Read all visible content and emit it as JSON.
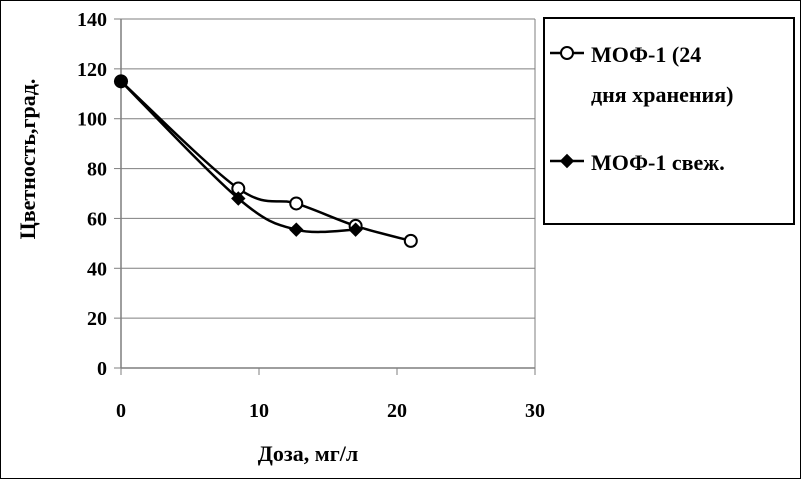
{
  "chart_data": {
    "type": "line",
    "title": "",
    "xlabel": "Доза, мг/л",
    "ylabel": "Цветность,град.",
    "xlim": [
      0,
      30
    ],
    "ylim": [
      0,
      140
    ],
    "x_ticks": [
      "0",
      "10",
      "20",
      "30"
    ],
    "y_ticks": [
      "0",
      "20",
      "40",
      "60",
      "80",
      "100",
      "120",
      "140"
    ],
    "grid": {
      "horizontal": true,
      "vertical": false
    },
    "legend_position": "right",
    "series": [
      {
        "name_lines": [
          "МОФ-1 (24",
          "дня хранения)"
        ],
        "marker": "open-circle",
        "x": [
          0,
          8.5,
          12.7,
          17,
          21
        ],
        "y": [
          115,
          72,
          66,
          57,
          51
        ]
      },
      {
        "name_lines": [
          "МОФ-1 свеж."
        ],
        "marker": "filled-diamond",
        "x": [
          0,
          8.5,
          12.7,
          17
        ],
        "y": [
          115,
          68,
          55.5,
          55.5
        ]
      }
    ]
  }
}
